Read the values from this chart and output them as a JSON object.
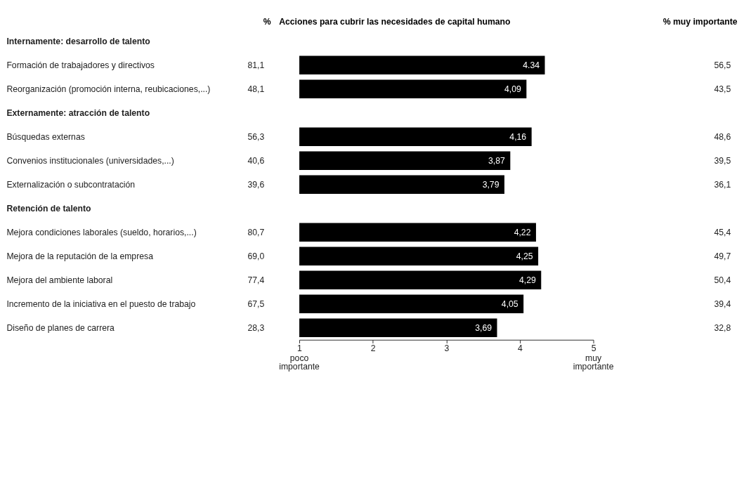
{
  "chart_data": [
    {
      "type": "other",
      "title": "%",
      "categories": [
        "Internamente: desarrollo de talento",
        "Formación de trabajadores y directivos",
        "Reorganización (promoción interna, reubicaciones,...)",
        "Externamente: atracción de talento",
        "Búsquedas externas",
        "Convenios institucionales (universidades,...)",
        "Externalización o subcontratación",
        "Retención de talento",
        "Mejora condiciones laborales (sueldo, horarios,...)",
        "Mejora de la reputación de la empresa",
        "Mejora del ambiente laboral",
        "Incremento de la iniciativa en el puesto de trabajo",
        "Diseño de planes de carrera"
      ],
      "values": [
        null,
        81.1,
        48.1,
        null,
        56.3,
        40.6,
        39.6,
        null,
        80.7,
        69.0,
        77.4,
        67.5,
        28.3
      ],
      "value_labels": [
        null,
        "81,1",
        "48,1",
        null,
        "56,3",
        "40,6",
        "39,6",
        null,
        "80,7",
        "69,0",
        "77,4",
        "67,5",
        "28,3"
      ]
    },
    {
      "type": "bar",
      "orientation": "horizontal",
      "title": "Acciones para cubrir las necesidades de capital humano",
      "categories": [
        null,
        null,
        null,
        null,
        null,
        null,
        null,
        null,
        null,
        null
      ],
      "values": [
        4.34,
        4.09,
        4.16,
        3.87,
        3.79,
        4.22,
        4.25,
        4.29,
        4.05,
        3.69
      ],
      "value_labels": [
        "4.34",
        "4,09",
        "4,16",
        "3,87",
        "3,79",
        "4,22",
        "4,25",
        "4,29",
        "4,05",
        "3,69"
      ],
      "color": "#000000",
      "xlim": [
        1,
        5
      ],
      "xticks": [
        1,
        2,
        3,
        4,
        5
      ],
      "annotations": [
        "poco importante",
        "muy importante"
      ],
      "tick_labels": "x"
    },
    {
      "type": "other",
      "title": "% muy importante",
      "values": [
        null,
        56.5,
        43.5,
        null,
        48.6,
        39.5,
        36.1,
        null,
        45.4,
        49.7,
        50.4,
        39.4,
        32.8
      ],
      "value_labels": [
        null,
        "56,5",
        "43,5",
        null,
        "48,6",
        "39,5",
        "36,1",
        null,
        "45,4",
        "49,7",
        "50,4",
        "39,4",
        "32,8"
      ]
    }
  ]
}
